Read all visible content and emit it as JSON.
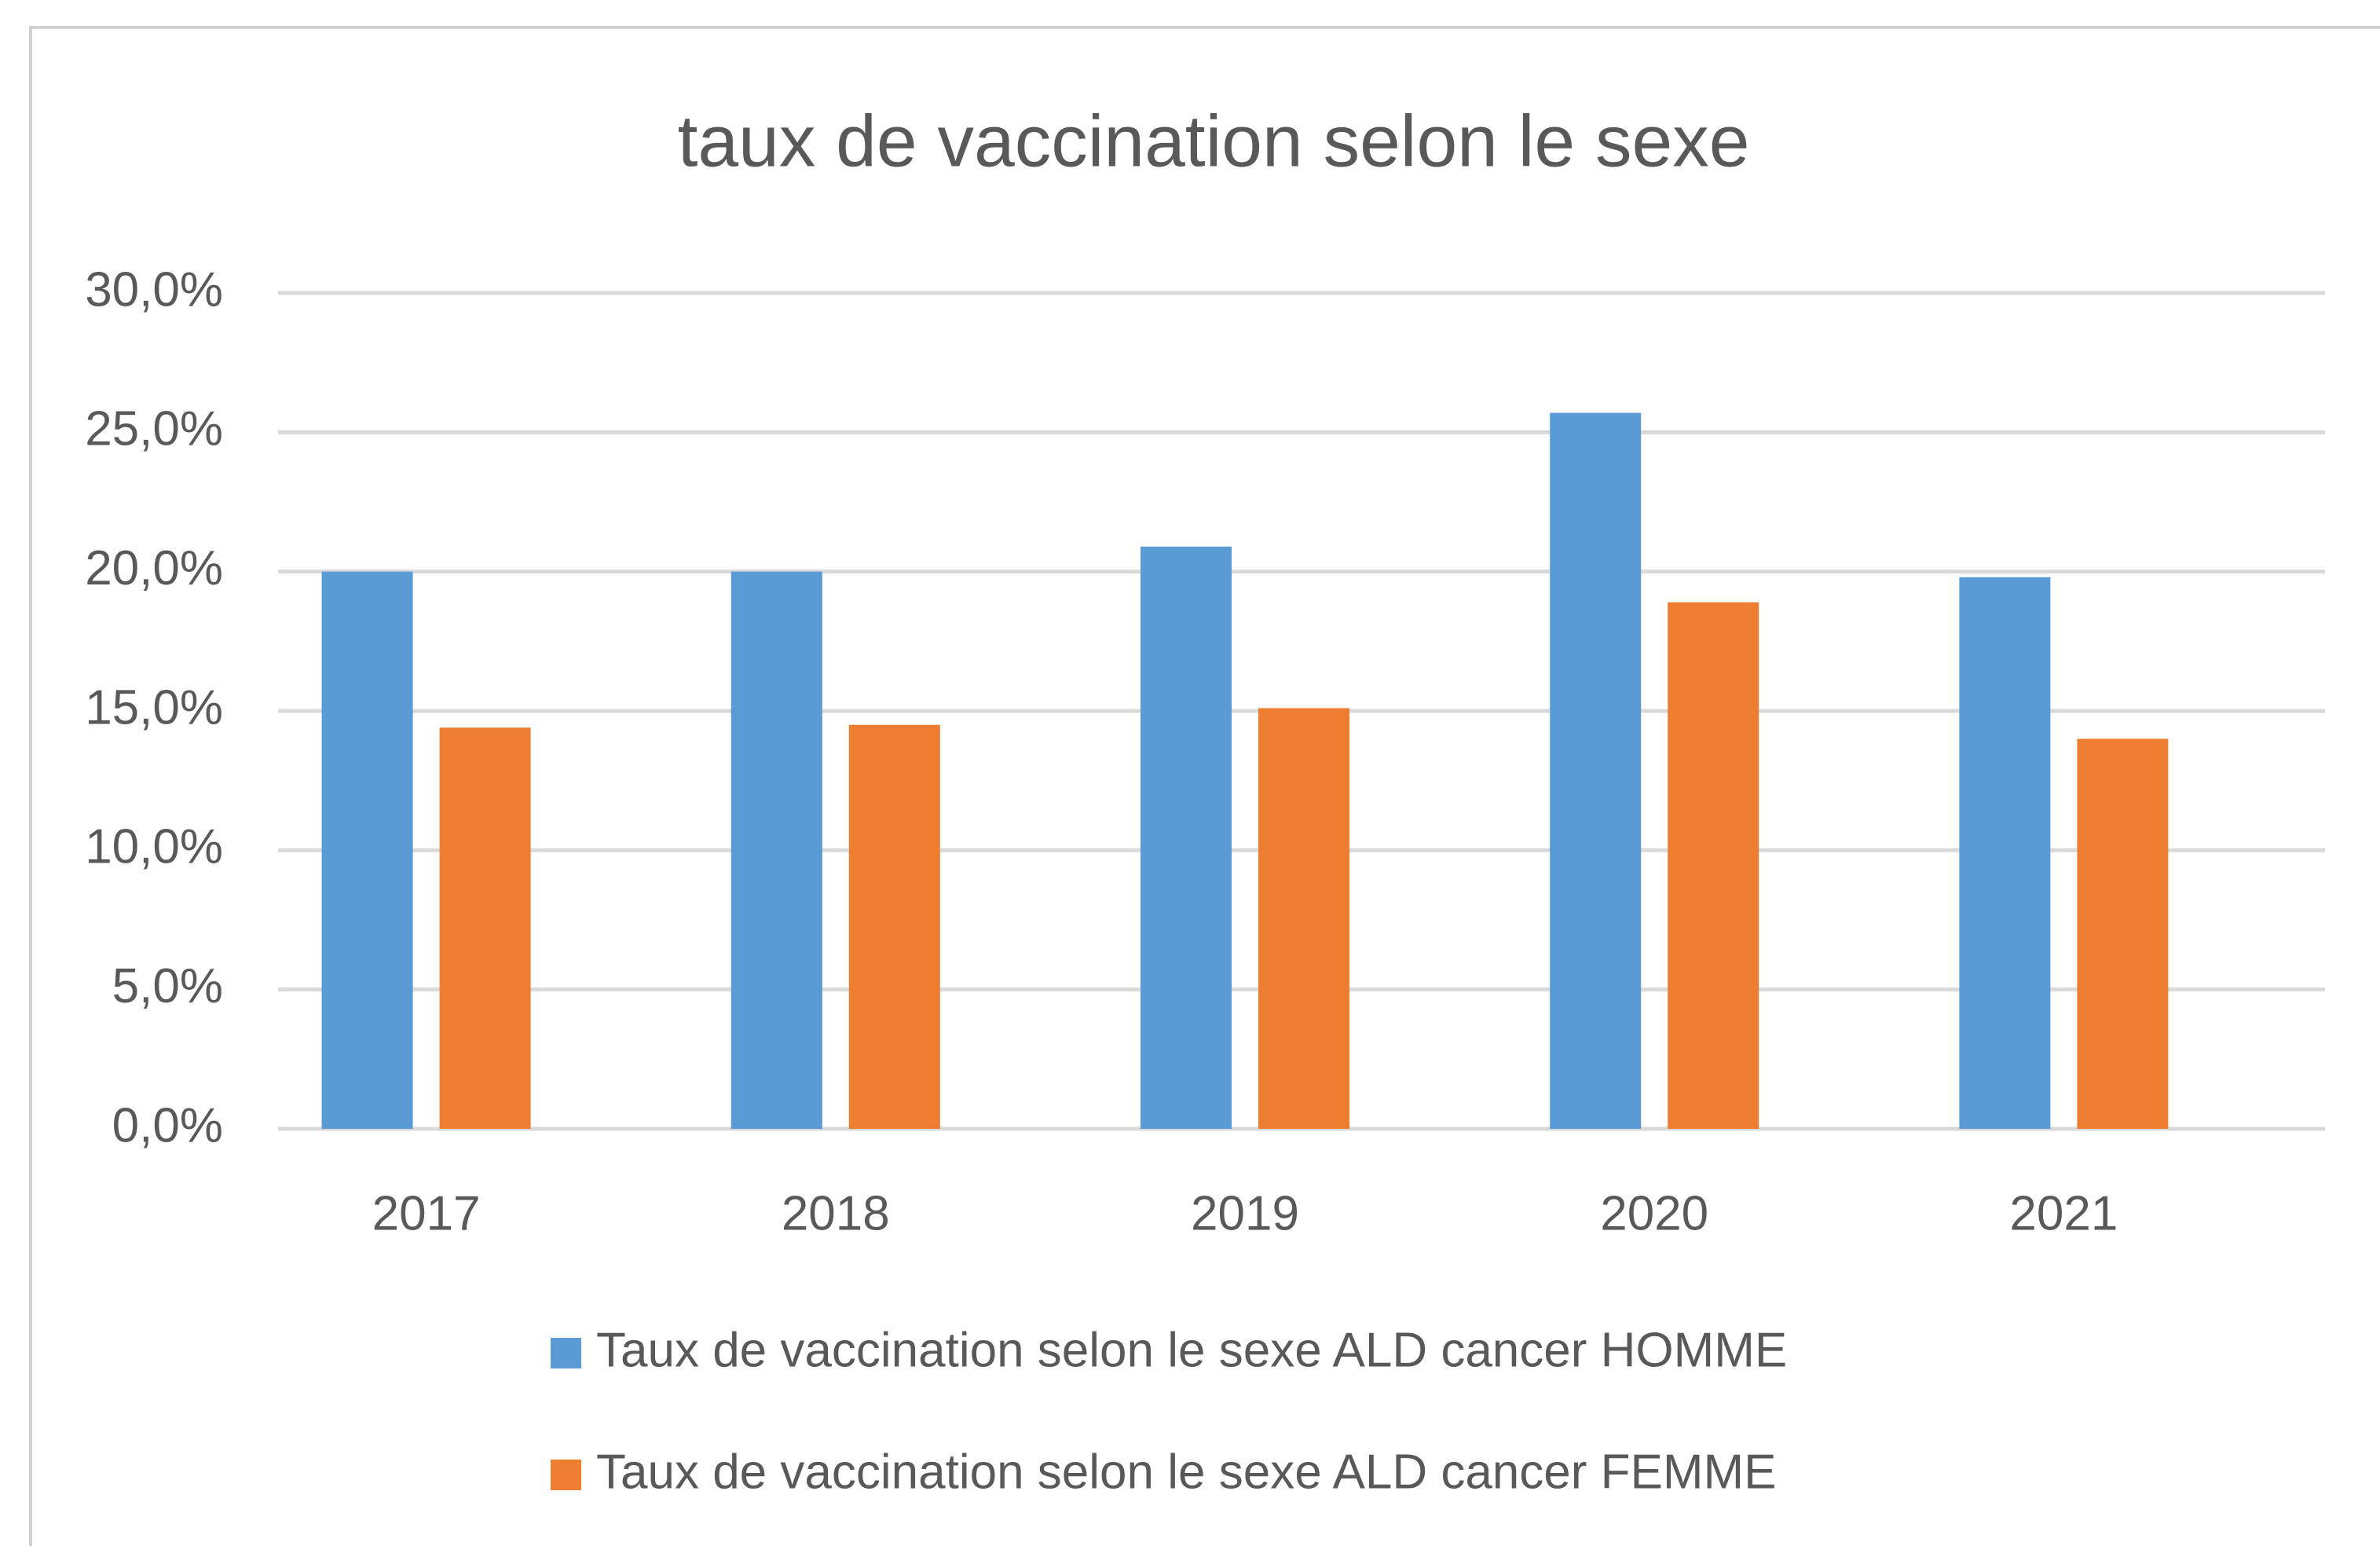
{
  "chart_data": {
    "type": "bar",
    "title": "taux de vaccination selon le sexe",
    "categories": [
      "2017",
      "2018",
      "2019",
      "2020",
      "2021"
    ],
    "series": [
      {
        "name": "Taux de vaccination selon le sexe ALD cancer HOMME",
        "color": "#5b9bd5",
        "values": [
          20.0,
          20.0,
          20.9,
          25.7,
          19.8
        ]
      },
      {
        "name": "Taux de vaccination selon le sexe ALD cancer FEMME",
        "color": "#ed7d31",
        "values": [
          14.4,
          14.5,
          15.1,
          18.9,
          14.0
        ]
      }
    ],
    "ylim": [
      0,
      30
    ],
    "yticks": [
      {
        "value": 0,
        "label": "0,0%"
      },
      {
        "value": 5,
        "label": "5,0%"
      },
      {
        "value": 10,
        "label": "10,0%"
      },
      {
        "value": 15,
        "label": "15,0%"
      },
      {
        "value": 20,
        "label": "20,0%"
      },
      {
        "value": 25,
        "label": "25,0%"
      },
      {
        "value": 30,
        "label": "30,0%"
      }
    ],
    "grid": true,
    "legend": "bottom"
  }
}
